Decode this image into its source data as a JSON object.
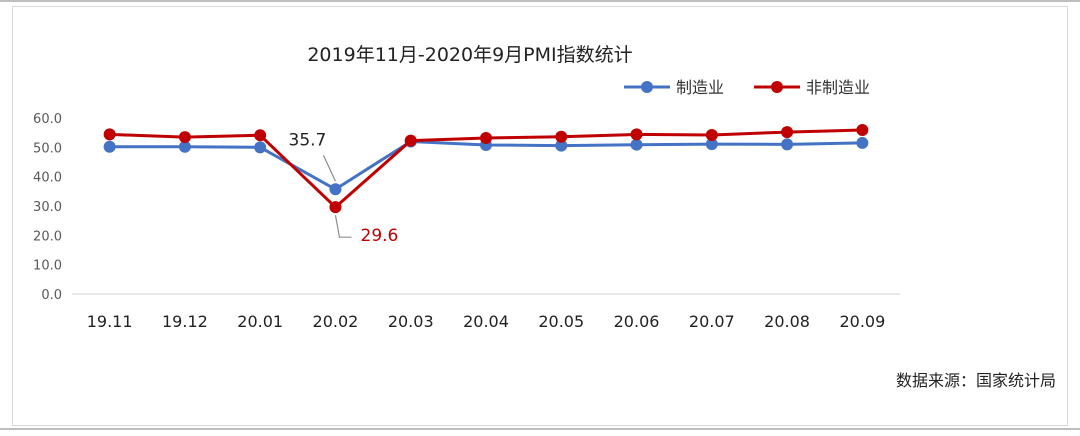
{
  "chart_data": {
    "type": "line",
    "title": "2019年11月-2020年9月PMI指数统计",
    "categories": [
      "19.11",
      "19.12",
      "20.01",
      "20.02",
      "20.03",
      "20.04",
      "20.05",
      "20.06",
      "20.07",
      "20.08",
      "20.09"
    ],
    "series": [
      {
        "name": "制造业",
        "color": "#4472C4",
        "values": [
          50.2,
          50.2,
          50.0,
          35.7,
          52.0,
          50.8,
          50.6,
          50.9,
          51.1,
          51.0,
          51.5
        ]
      },
      {
        "name": "非制造业",
        "color": "#C00000",
        "values": [
          54.4,
          53.5,
          54.1,
          29.6,
          52.3,
          53.2,
          53.6,
          54.4,
          54.2,
          55.2,
          55.9
        ]
      }
    ],
    "yticks": [
      "0.0",
      "10.0",
      "20.0",
      "30.0",
      "40.0",
      "50.0",
      "60.0"
    ],
    "ylim": [
      0,
      60
    ],
    "grid": false,
    "legend_position": "top-right",
    "annotations": [
      {
        "label": "35.7",
        "series": "制造业",
        "category": "20.02",
        "color": "#222222"
      },
      {
        "label": "29.6",
        "series": "非制造业",
        "category": "20.02",
        "color": "#C00000"
      }
    ],
    "source": "数据来源：国家统计局"
  }
}
